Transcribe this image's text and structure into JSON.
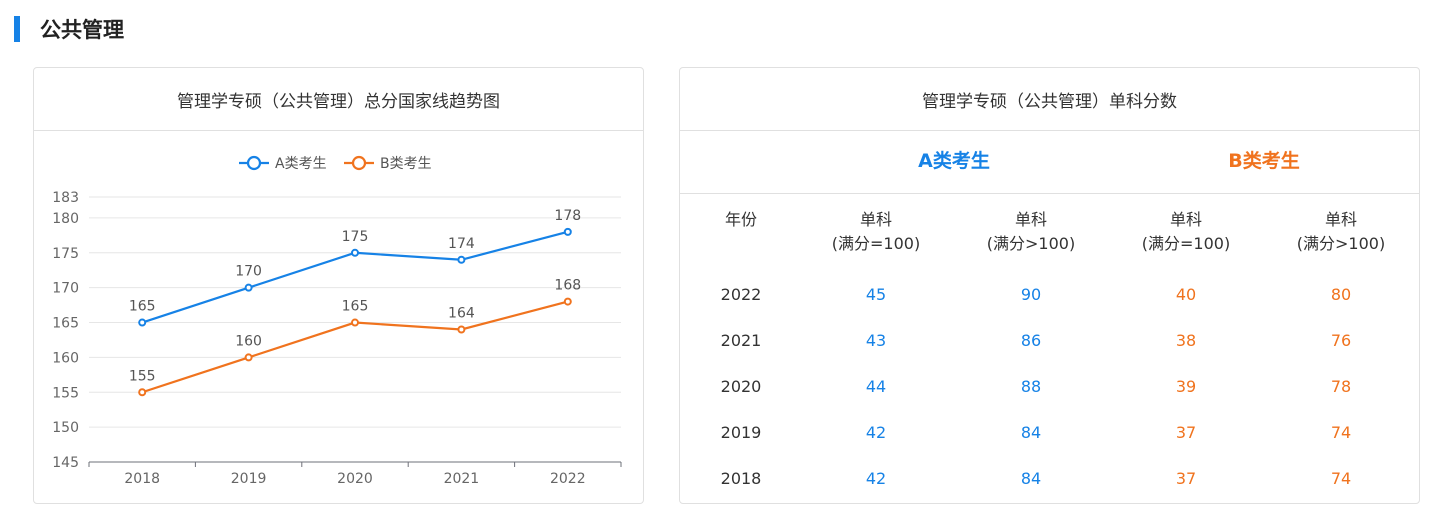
{
  "section": {
    "title": "公共管理"
  },
  "left_card": {
    "title": "管理学专硕（公共管理）总分国家线趋势图"
  },
  "right_card": {
    "title": "管理学专硕（公共管理）单科分数",
    "category_a": "A类考生",
    "category_b": "B类考生",
    "year_header": "年份",
    "col_headers": [
      {
        "line1": "单科",
        "line2": "(满分=100)"
      },
      {
        "line1": "单科",
        "line2": "(满分>100)"
      },
      {
        "line1": "单科",
        "line2": "(满分=100)"
      },
      {
        "line1": "单科",
        "line2": "(满分>100)"
      }
    ],
    "rows": [
      {
        "year": "2022",
        "a100": "45",
        "a_over": "90",
        "b100": "40",
        "b_over": "80"
      },
      {
        "year": "2021",
        "a100": "43",
        "a_over": "86",
        "b100": "38",
        "b_over": "76"
      },
      {
        "year": "2020",
        "a100": "44",
        "a_over": "88",
        "b100": "39",
        "b_over": "78"
      },
      {
        "year": "2019",
        "a100": "42",
        "a_over": "84",
        "b100": "37",
        "b_over": "74"
      },
      {
        "year": "2018",
        "a100": "42",
        "a_over": "84",
        "b100": "37",
        "b_over": "74"
      }
    ]
  },
  "colors": {
    "accent_a": "#1682e6",
    "accent_b": "#f0731e"
  },
  "chart_data": {
    "type": "line",
    "title": "管理学专硕（公共管理）总分国家线趋势图",
    "categories": [
      "2018",
      "2019",
      "2020",
      "2021",
      "2022"
    ],
    "series": [
      {
        "name": "A类考生",
        "color": "#1682e6",
        "values": [
          165,
          170,
          175,
          174,
          178
        ]
      },
      {
        "name": "B类考生",
        "color": "#f0731e",
        "values": [
          155,
          160,
          165,
          164,
          168
        ]
      }
    ],
    "yticks": [
      145,
      150,
      155,
      160,
      165,
      170,
      175,
      180,
      183
    ],
    "ylim": [
      145,
      183
    ],
    "xlabel": "",
    "ylabel": "",
    "grid": true,
    "legend": "top-center",
    "data_labels": true
  }
}
